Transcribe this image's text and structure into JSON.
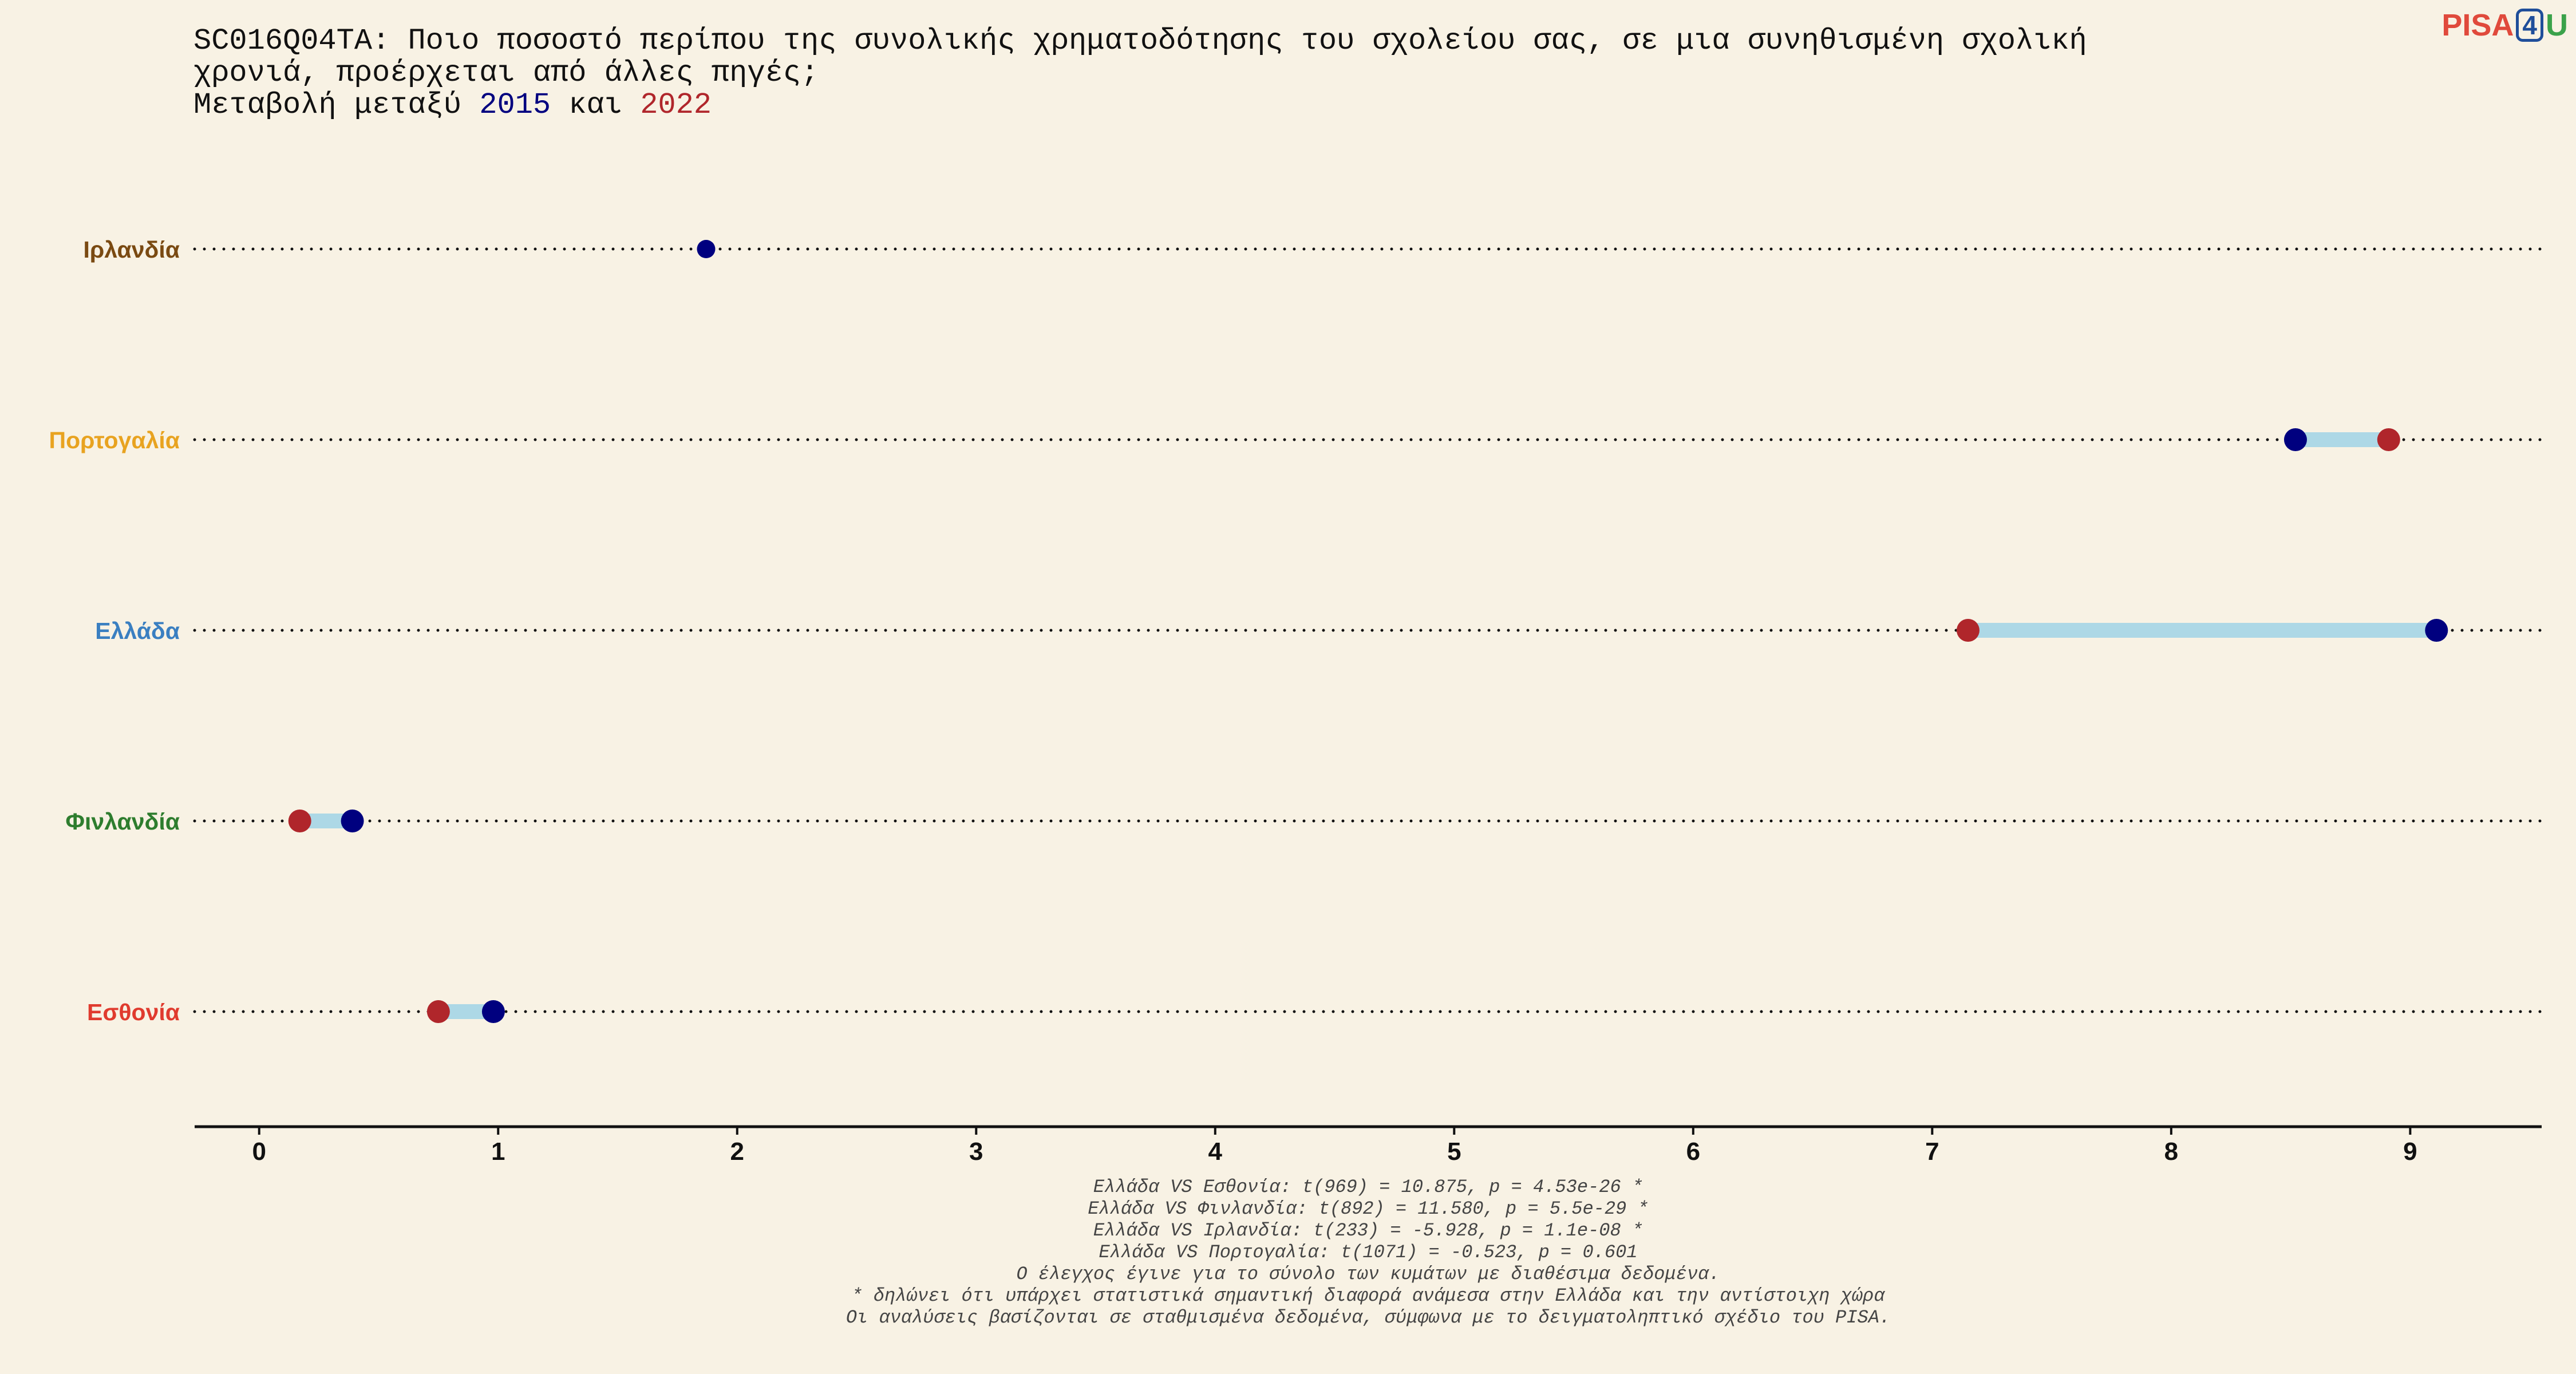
{
  "chart_data": {
    "type": "dumbbell",
    "title_lines": [
      "SC016Q04TA: Ποιο ποσοστό περίπου της συνολικής χρηματοδότησης του σχολείου σας, σε μια συνηθισμένη σχολική",
      "χρονιά, προέρχεται από άλλες πηγές;"
    ],
    "subtitle_prefix": "Μεταβολή μεταξύ",
    "subtitle_joiner": "και",
    "legend_2015": "2015",
    "legend_2022": "2022",
    "xlim": [
      -0.27,
      9.55
    ],
    "x_ticks": [
      "0",
      "1",
      "2",
      "3",
      "4",
      "5",
      "6",
      "7",
      "8",
      "9"
    ],
    "countries": [
      {
        "name": "Ιρλανδία",
        "color": "#7a4a12",
        "v2015": 1.87,
        "v2022": null
      },
      {
        "name": "Πορτογαλία",
        "color": "#e8a320",
        "v2015": 8.52,
        "v2022": 8.91
      },
      {
        "name": "Ελλάδα",
        "color": "#3a7fc1",
        "v2015": 9.11,
        "v2022": 7.15
      },
      {
        "name": "Φινλανδία",
        "color": "#2e7d2e",
        "v2015": 0.39,
        "v2022": 0.17
      },
      {
        "name": "Εσθονία",
        "color": "#e03b2e",
        "v2015": 0.98,
        "v2022": 0.75
      }
    ],
    "colors": {
      "c2015": "#00007f",
      "c2022": "#b0262b",
      "bar": "#add8e6",
      "axis": "#111111"
    }
  },
  "footnotes": [
    "Ελλάδα VS Εσθονία: t(969) = 10.875, p = 4.53e-26 *",
    "Ελλάδα VS Φινλανδία: t(892) = 11.580, p = 5.5e-29 *",
    "Ελλάδα VS Ιρλανδία: t(233) = -5.928, p = 1.1e-08 *",
    "Ελλάδα VS Πορτογαλία: t(1071) = -0.523, p = 0.601",
    "Ο έλεγχος έγινε για το σύνολο των κυμάτων με διαθέσιμα δεδομένα.",
    "* δηλώνει ότι υπάρχει στατιστικά σημαντική διαφορά ανάμεσα στην Ελλάδα και την αντίστοιχη χώρα",
    "Οι αναλύσεις βασίζονται σε σταθμισμένα δεδομένα, σύμφωνα με το δειγματοληπτικό σχέδιο του PISA."
  ],
  "logo": {
    "part1": "PISA",
    "part2": "4",
    "part3": "U"
  }
}
